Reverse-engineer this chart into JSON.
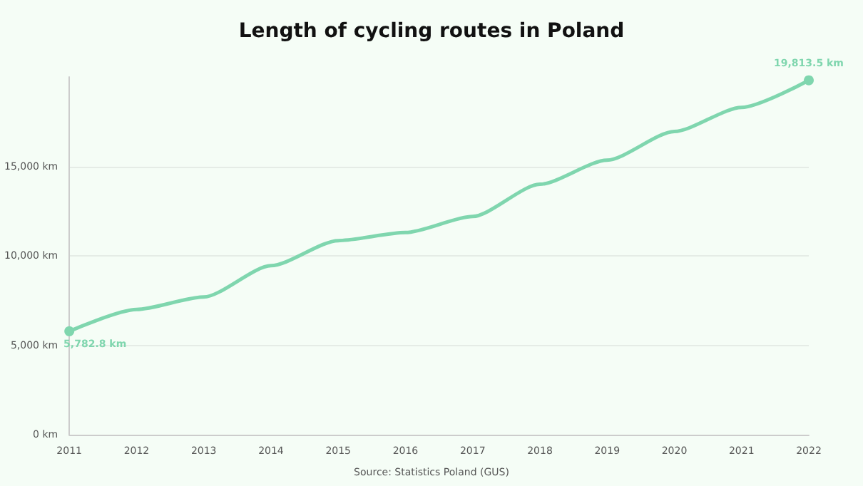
{
  "chart_data": {
    "type": "line",
    "title": "Length of cycling routes in Poland",
    "categories": [
      "2011",
      "2012",
      "2013",
      "2014",
      "2015",
      "2016",
      "2017",
      "2018",
      "2019",
      "2020",
      "2021",
      "2022"
    ],
    "series": [
      {
        "color": "#7fd6ae",
        "values": [
          5782.8,
          7000,
          7700,
          9450,
          10850,
          11300,
          12200,
          14000,
          15350,
          16950,
          18300,
          19813.5
        ],
        "value_labels": [
          "5,782.8 km",
          null,
          null,
          null,
          null,
          null,
          null,
          null,
          null,
          null,
          null,
          "19,813.5 km"
        ]
      }
    ],
    "ylim": [
      0,
      20000
    ],
    "yticks": [
      {
        "value": 0,
        "label": "0 km"
      },
      {
        "value": 5000,
        "label": "5,000 km"
      },
      {
        "value": 10000,
        "label": "10,000 km"
      },
      {
        "value": 15000,
        "label": "15,000 km"
      }
    ],
    "grid": "y",
    "marker": "none",
    "line_style": "solid",
    "annotations": [
      "Source: Statistics Poland (GUS)"
    ]
  }
}
